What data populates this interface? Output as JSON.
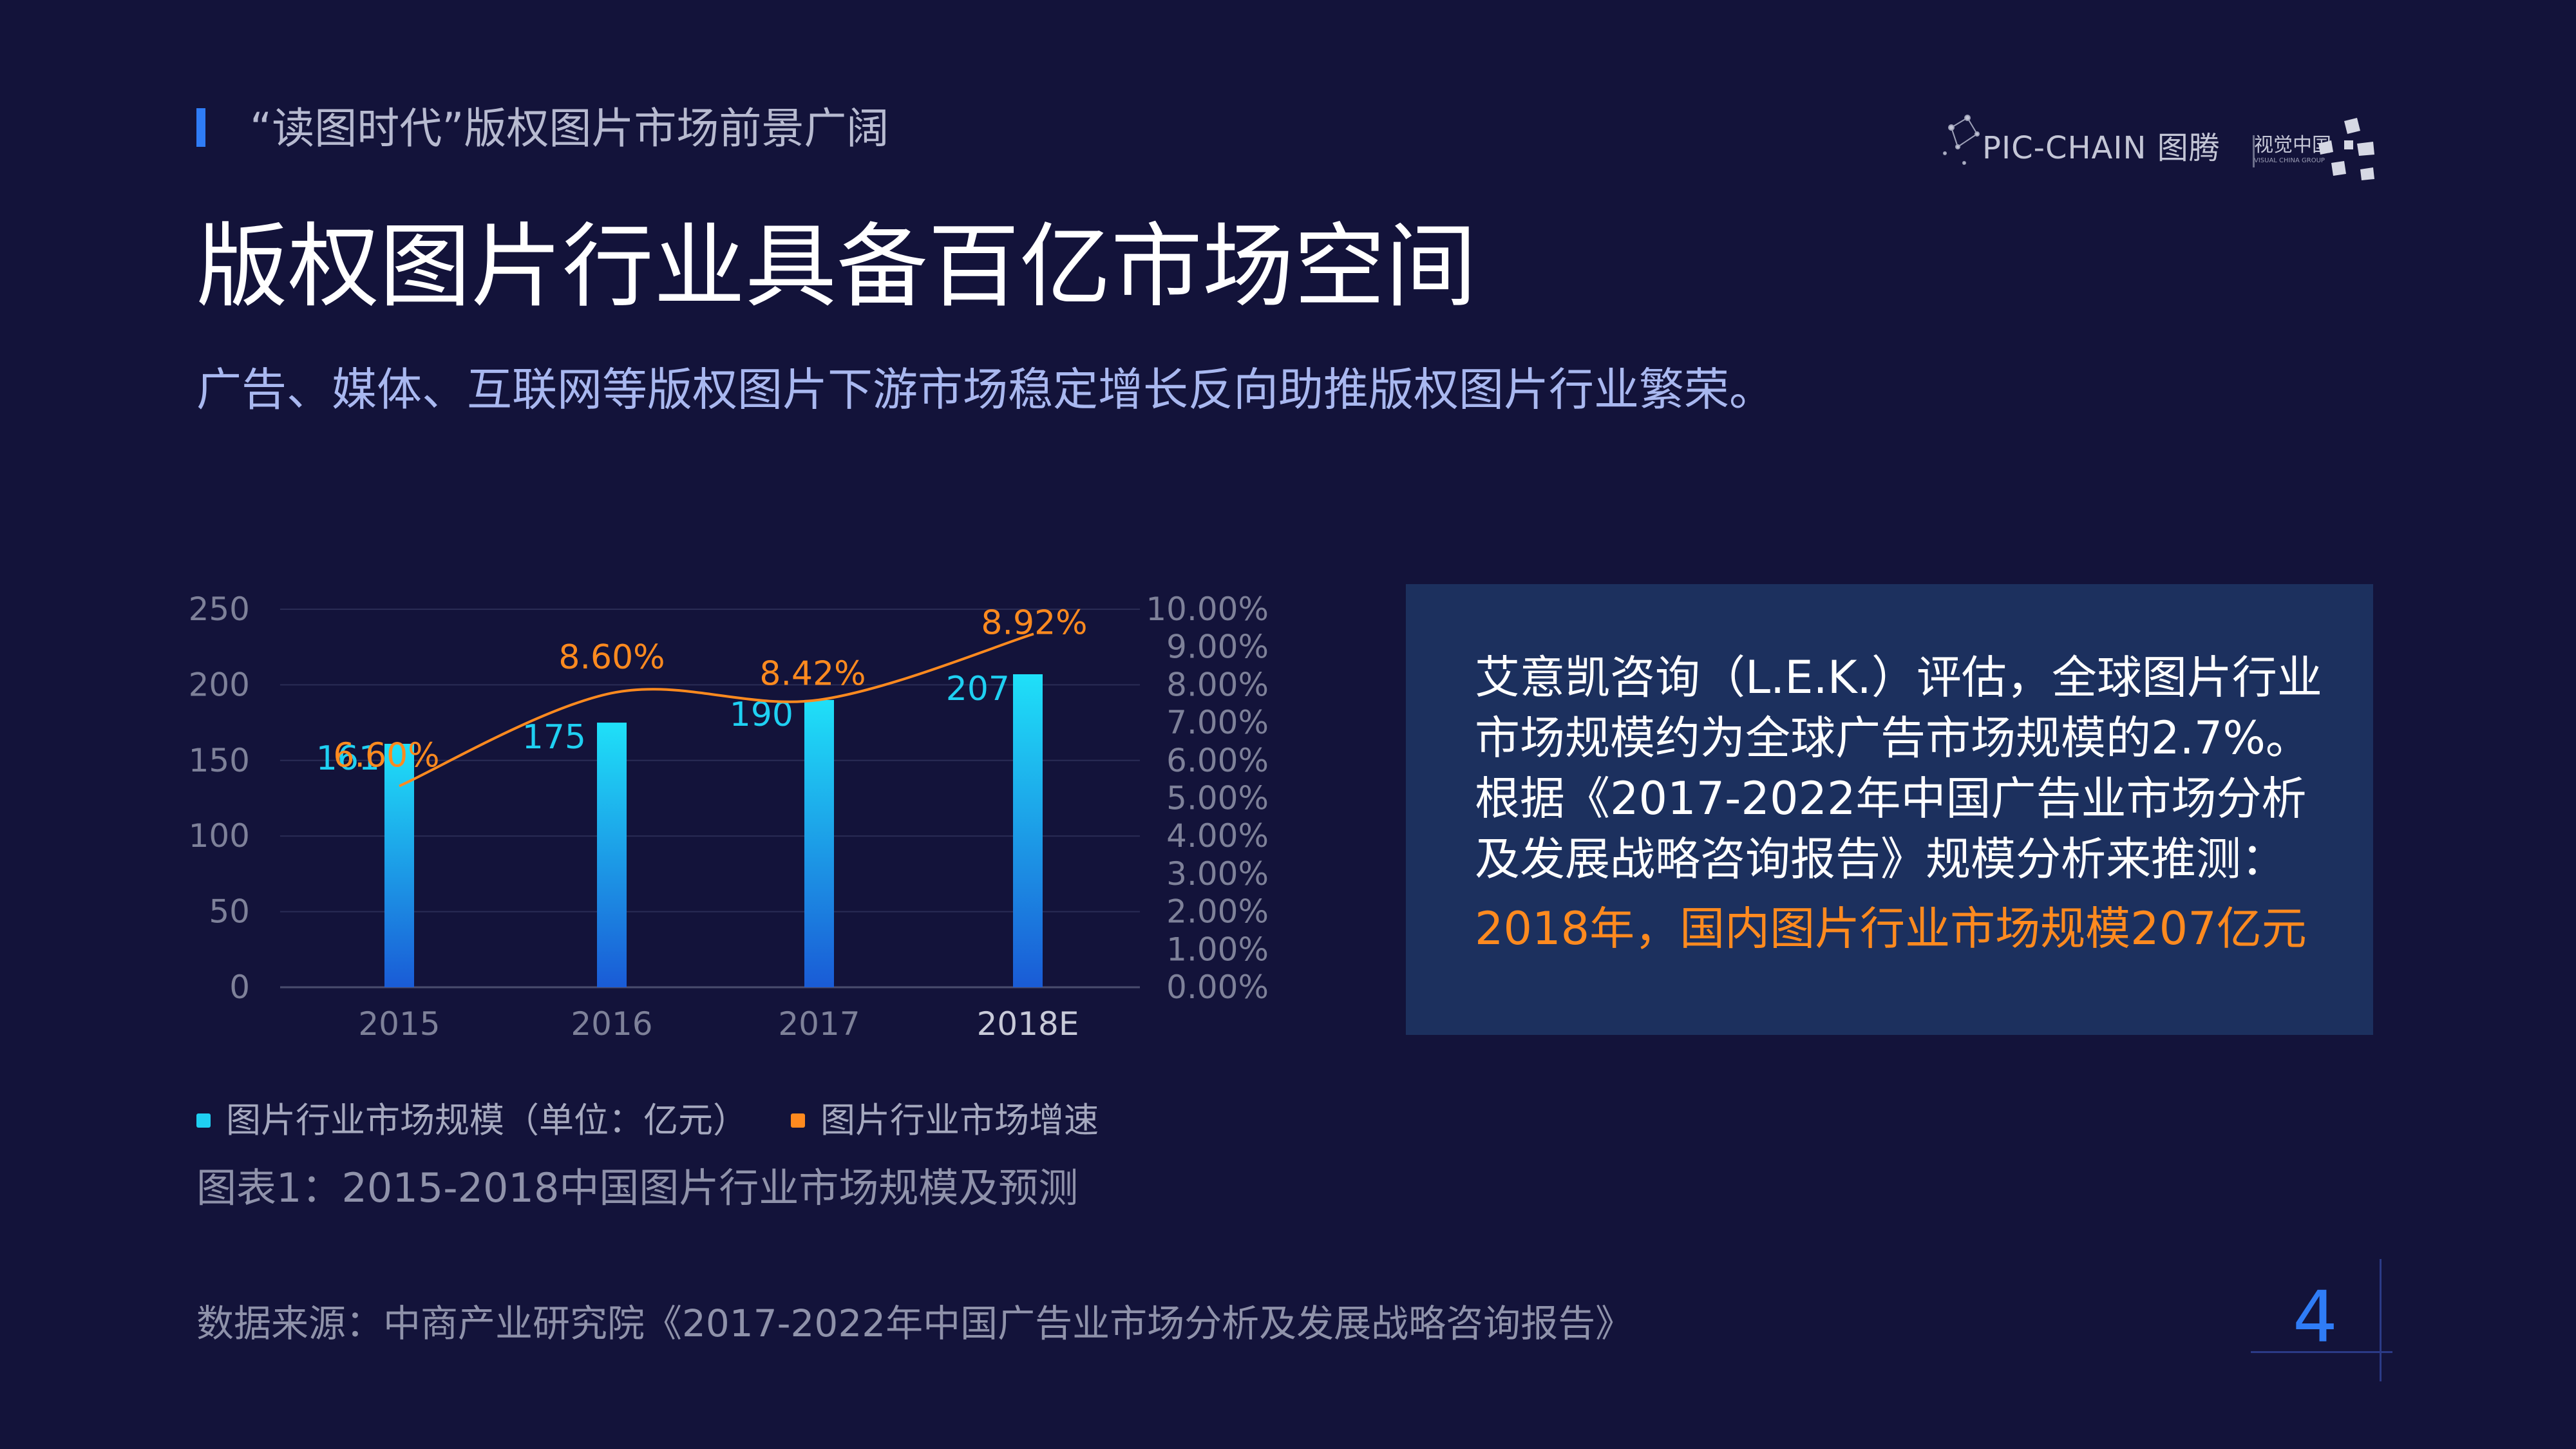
{
  "header": {
    "section_title": "“读图时代”版权图片市场前景广阔",
    "main_title": "版权图片行业具备百亿市场空间",
    "subtitle": "广告、媒体、互联网等版权图片下游市场稳定增长反向助推版权图片行业繁荣。"
  },
  "brand": {
    "left_text": "PIC-CHAIN 图腾",
    "right_text": "视觉中国",
    "right_subtext": "VISUAL CHINA GROUP"
  },
  "colors": {
    "background": "#13133a",
    "accent_blue": "#2f7cf6",
    "bar_top": "#1fe0f8",
    "bar_bottom": "#1a5bd6",
    "growth_line": "#ff8a1f",
    "info_box": "#1c305e"
  },
  "chart_data": {
    "type": "bar",
    "categories": [
      "2015",
      "2016",
      "2017",
      "2018E"
    ],
    "series": [
      {
        "name": "图片行业市场规模（单位：亿元）",
        "type": "bar",
        "axis": "left",
        "values": [
          161,
          175,
          190,
          207
        ],
        "labels": [
          "161",
          "175",
          "190",
          "207"
        ]
      },
      {
        "name": "图片行业市场增速",
        "type": "line",
        "axis": "right",
        "values": [
          6.6,
          8.6,
          8.42,
          8.92
        ],
        "labels": [
          "6.60%",
          "8.60%",
          "8.42%",
          "8.92%"
        ]
      }
    ],
    "y_left": {
      "range": [
        0,
        250
      ],
      "ticks": [
        "0",
        "50",
        "100",
        "150",
        "200",
        "250"
      ]
    },
    "y_right": {
      "range": [
        0,
        10
      ],
      "ticks": [
        "0.00%",
        "1.00%",
        "2.00%",
        "3.00%",
        "4.00%",
        "5.00%",
        "6.00%",
        "7.00%",
        "8.00%",
        "9.00%",
        "10.00%"
      ]
    },
    "grid": true,
    "legend_position": "bottom-left"
  },
  "legend": {
    "size_label": "图片行业市场规模（单位：亿元）",
    "rate_label": "图片行业市场增速"
  },
  "caption": "图表1：2015-2018中国图片行业市场规模及预测",
  "info": {
    "text": "艾意凯咨询（L.E.K.）评估，全球图片行业市场规模约为全球广告市场规模的2.7%。根据《2017-2022年中国广告业市场分析及发展战略咨询报告》规模分析来推测：",
    "highlight": "2018年，国内图片行业市场规模207亿元"
  },
  "source": "数据来源：中商产业研究院《2017-2022年中国广告业市场分析及发展战略咨询报告》",
  "page_number": "4"
}
